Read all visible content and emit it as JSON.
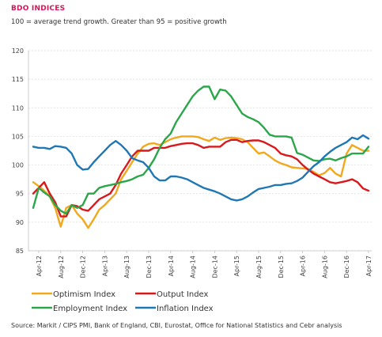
{
  "header": {
    "title": "BDO INDICES",
    "subtitle": "100 = average trend growth. Greater than 95 = positive growth"
  },
  "footer": {
    "source": "Source: Markit / CIPS PMI, Bank of England, CBI, Eurostat, Office for National Statistics and Cebr analysis"
  },
  "chart_data": {
    "type": "line",
    "title": "BDO INDICES",
    "subtitle": "100 = average trend growth. Greater than 95 = positive growth",
    "x_tick_labels": [
      "Apr-12",
      "Aug-12",
      "Dec-12",
      "Apr-13",
      "Aug-13",
      "Dec-13",
      "Apr-14",
      "Aug-14",
      "Dec-14",
      "Apr-15",
      "Aug-15",
      "Dec-15",
      "Apr-16",
      "Aug-16",
      "Dec-16",
      "Apr-17"
    ],
    "x_months": [
      "Mar-12",
      "Apr-12",
      "May-12",
      "Jun-12",
      "Jul-12",
      "Aug-12",
      "Sep-12",
      "Oct-12",
      "Nov-12",
      "Dec-12",
      "Jan-13",
      "Feb-13",
      "Mar-13",
      "Apr-13",
      "May-13",
      "Jun-13",
      "Jul-13",
      "Aug-13",
      "Sep-13",
      "Oct-13",
      "Nov-13",
      "Dec-13",
      "Jan-14",
      "Feb-14",
      "Mar-14",
      "Apr-14",
      "May-14",
      "Jun-14",
      "Jul-14",
      "Aug-14",
      "Sep-14",
      "Oct-14",
      "Nov-14",
      "Dec-14",
      "Jan-15",
      "Feb-15",
      "Mar-15",
      "Apr-15",
      "May-15",
      "Jun-15",
      "Jul-15",
      "Aug-15",
      "Sep-15",
      "Oct-15",
      "Nov-15",
      "Dec-15",
      "Jan-16",
      "Feb-16",
      "Mar-16",
      "Apr-16",
      "May-16",
      "Jun-16",
      "Jul-16",
      "Aug-16",
      "Sep-16",
      "Oct-16",
      "Nov-16",
      "Dec-16",
      "Jan-17",
      "Feb-17",
      "Mar-17",
      "Apr-17"
    ],
    "y_ticks": [
      85,
      90,
      95,
      100,
      105,
      110,
      115,
      120
    ],
    "ylim": [
      85,
      120
    ],
    "grid": "horizontal",
    "legend_position": "bottom",
    "series": [
      {
        "name": "Optimism Index",
        "color": "#f2a81d",
        "values": [
          97,
          96.3,
          95.5,
          94.5,
          92.5,
          89.2,
          92.5,
          93,
          91.5,
          90.5,
          89,
          90.5,
          92.2,
          93,
          94,
          95,
          97.5,
          99,
          100.5,
          102,
          103.2,
          103.7,
          103.8,
          103.5,
          104,
          104.5,
          104.8,
          105,
          105,
          105,
          104.9,
          104.5,
          104.2,
          104.8,
          104.4,
          104.7,
          104.8,
          104.7,
          104.5,
          104,
          103,
          102,
          102.2,
          101.5,
          100.8,
          100.3,
          100,
          99.6,
          99.5,
          99.4,
          99.3,
          98.8,
          98.2,
          98.6,
          99.5,
          98.5,
          98,
          102,
          103.5,
          103,
          102.5,
          102.5
        ]
      },
      {
        "name": "Output Index",
        "color": "#d7191c",
        "values": [
          95,
          96,
          97,
          95,
          93.5,
          91,
          91,
          93,
          92.8,
          92.2,
          92,
          93,
          94,
          94.5,
          95,
          96.5,
          98.5,
          100,
          101.5,
          102.5,
          102.5,
          102.5,
          103,
          103,
          103,
          103.3,
          103.5,
          103.7,
          103.8,
          103.8,
          103.5,
          103,
          103.2,
          103.2,
          103.2,
          104,
          104.4,
          104.4,
          104,
          104.2,
          104.3,
          104.3,
          104,
          103.5,
          103,
          102,
          101.7,
          101.5,
          101,
          100,
          99.2,
          98.5,
          98,
          97.5,
          97,
          96.8,
          97,
          97.2,
          97.5,
          97,
          95.9,
          95.5
        ]
      },
      {
        "name": "Employment Index",
        "color": "#2ca64a",
        "values": [
          92.5,
          96,
          95.2,
          94.5,
          93,
          92,
          91.5,
          93,
          92.5,
          93,
          95,
          95,
          96,
          96.3,
          96.5,
          96.7,
          97,
          97.2,
          97.5,
          98,
          98.3,
          99.5,
          101,
          103,
          104.5,
          105.5,
          107.5,
          109,
          110.5,
          112,
          113,
          113.7,
          113.7,
          111.5,
          113.2,
          113,
          112,
          110.5,
          109,
          108.4,
          108,
          107.5,
          106.5,
          105.3,
          105,
          105,
          105,
          104.8,
          102.1,
          101.8,
          101.3,
          100.8,
          100.7,
          101,
          101.1,
          100.8,
          101.2,
          101.5,
          102,
          102,
          102,
          103.2
        ]
      },
      {
        "name": "Inflation Index",
        "color": "#1f78b4",
        "values": [
          103.2,
          103,
          103,
          102.8,
          103.3,
          103.2,
          103,
          102,
          100,
          99.2,
          99.3,
          100.5,
          101.5,
          102.5,
          103.5,
          104.2,
          103.5,
          102.5,
          101.2,
          100.8,
          100.5,
          99.5,
          98,
          97.3,
          97.3,
          98,
          98,
          97.8,
          97.5,
          97,
          96.5,
          96,
          95.7,
          95.4,
          95,
          94.5,
          94,
          93.8,
          94,
          94.5,
          95.2,
          95.8,
          96,
          96.2,
          96.5,
          96.5,
          96.7,
          96.8,
          97.2,
          97.8,
          98.8,
          99.8,
          100.5,
          101.5,
          102.3,
          103,
          103.5,
          104,
          104.8,
          104.5,
          105.2,
          104.6
        ]
      }
    ]
  }
}
